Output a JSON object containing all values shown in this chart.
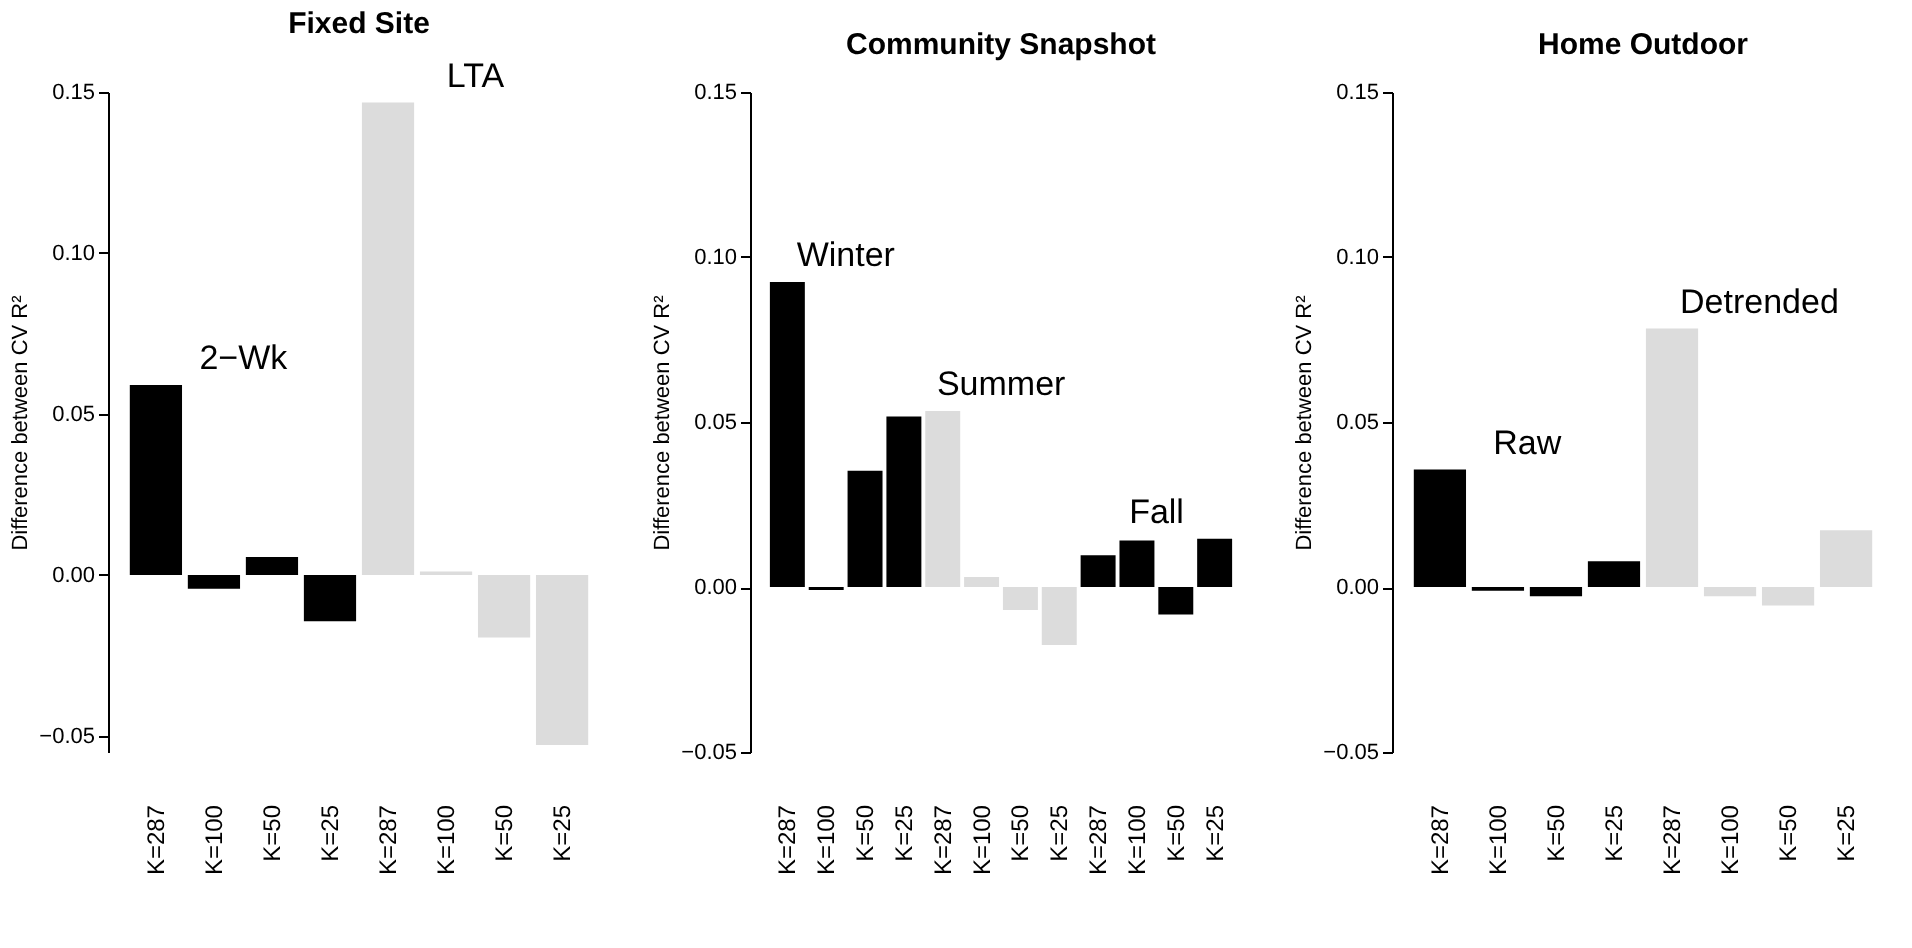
{
  "chart_data": [
    {
      "type": "bar",
      "title": "Fixed Site",
      "ylabel": "Difference between CV R²",
      "categories": [
        "K=287",
        "K=100",
        "K=50",
        "K=25",
        "K=287",
        "K=100",
        "K=50",
        "K=25"
      ],
      "ylim": [
        -0.055,
        0.15
      ],
      "yticks": [
        {
          "value": -0.05,
          "label": "−0.05"
        },
        {
          "value": 0,
          "label": "0.00"
        },
        {
          "value": 0.05,
          "label": "0.05"
        },
        {
          "value": 0.1,
          "label": "0.10"
        },
        {
          "value": 0.15,
          "label": "0.15"
        }
      ],
      "series": [
        {
          "name": "2−Wk",
          "color": "#000000",
          "values": [
            0.059,
            -0.0043,
            0.0056,
            -0.0144,
            null,
            null,
            null,
            null
          ]
        },
        {
          "name": "LTA",
          "color": "#dcdcdc",
          "values": [
            null,
            null,
            null,
            null,
            0.1467,
            0.0011,
            -0.0194,
            -0.0528
          ]
        }
      ]
    },
    {
      "type": "bar",
      "title": "Community Snapshot",
      "ylabel": "Difference between CV R²",
      "categories": [
        "K=287",
        "K=100",
        "K=50",
        "K=25",
        "K=287",
        "K=100",
        "K=50",
        "K=25",
        "K=287",
        "K=100",
        "K=50",
        "K=25"
      ],
      "ylim": [
        -0.05,
        0.15
      ],
      "yticks": [
        {
          "value": -0.05,
          "label": "−0.05"
        },
        {
          "value": 0,
          "label": "0.00"
        },
        {
          "value": 0.05,
          "label": "0.05"
        },
        {
          "value": 0.1,
          "label": "0.10"
        },
        {
          "value": 0.15,
          "label": "0.15"
        }
      ],
      "series": [
        {
          "name": "Winter",
          "color": "#000000",
          "values": [
            0.0924,
            -0.0009,
            0.0352,
            0.0517,
            null,
            null,
            null,
            null,
            null,
            null,
            null,
            null
          ]
        },
        {
          "name": "Summer",
          "color": "#dcdcdc",
          "values": [
            null,
            null,
            null,
            null,
            0.0533,
            0.003,
            -0.007,
            -0.0176,
            null,
            null,
            null,
            null
          ]
        },
        {
          "name": "Fall",
          "color": "#000000",
          "values": [
            null,
            null,
            null,
            null,
            null,
            null,
            null,
            null,
            0.0096,
            0.0141,
            -0.0083,
            0.0146
          ]
        }
      ]
    },
    {
      "type": "bar",
      "title": "Home Outdoor",
      "ylabel": "Difference between CV R²",
      "categories": [
        "K=287",
        "K=100",
        "K=50",
        "K=25",
        "K=287",
        "K=100",
        "K=50",
        "K=25"
      ],
      "ylim": [
        -0.05,
        0.15
      ],
      "yticks": [
        {
          "value": -0.05,
          "label": "−0.05"
        },
        {
          "value": 0,
          "label": "0.00"
        },
        {
          "value": 0.05,
          "label": "0.05"
        },
        {
          "value": 0.1,
          "label": "0.10"
        },
        {
          "value": 0.15,
          "label": "0.15"
        }
      ],
      "series": [
        {
          "name": "Raw",
          "color": "#000000",
          "values": [
            0.0356,
            -0.0011,
            -0.0028,
            0.0078,
            null,
            null,
            null,
            null
          ]
        },
        {
          "name": "Detrended",
          "color": "#dcdcdc",
          "values": [
            null,
            null,
            null,
            null,
            0.0783,
            -0.0028,
            -0.0056,
            0.0172
          ]
        }
      ]
    }
  ]
}
